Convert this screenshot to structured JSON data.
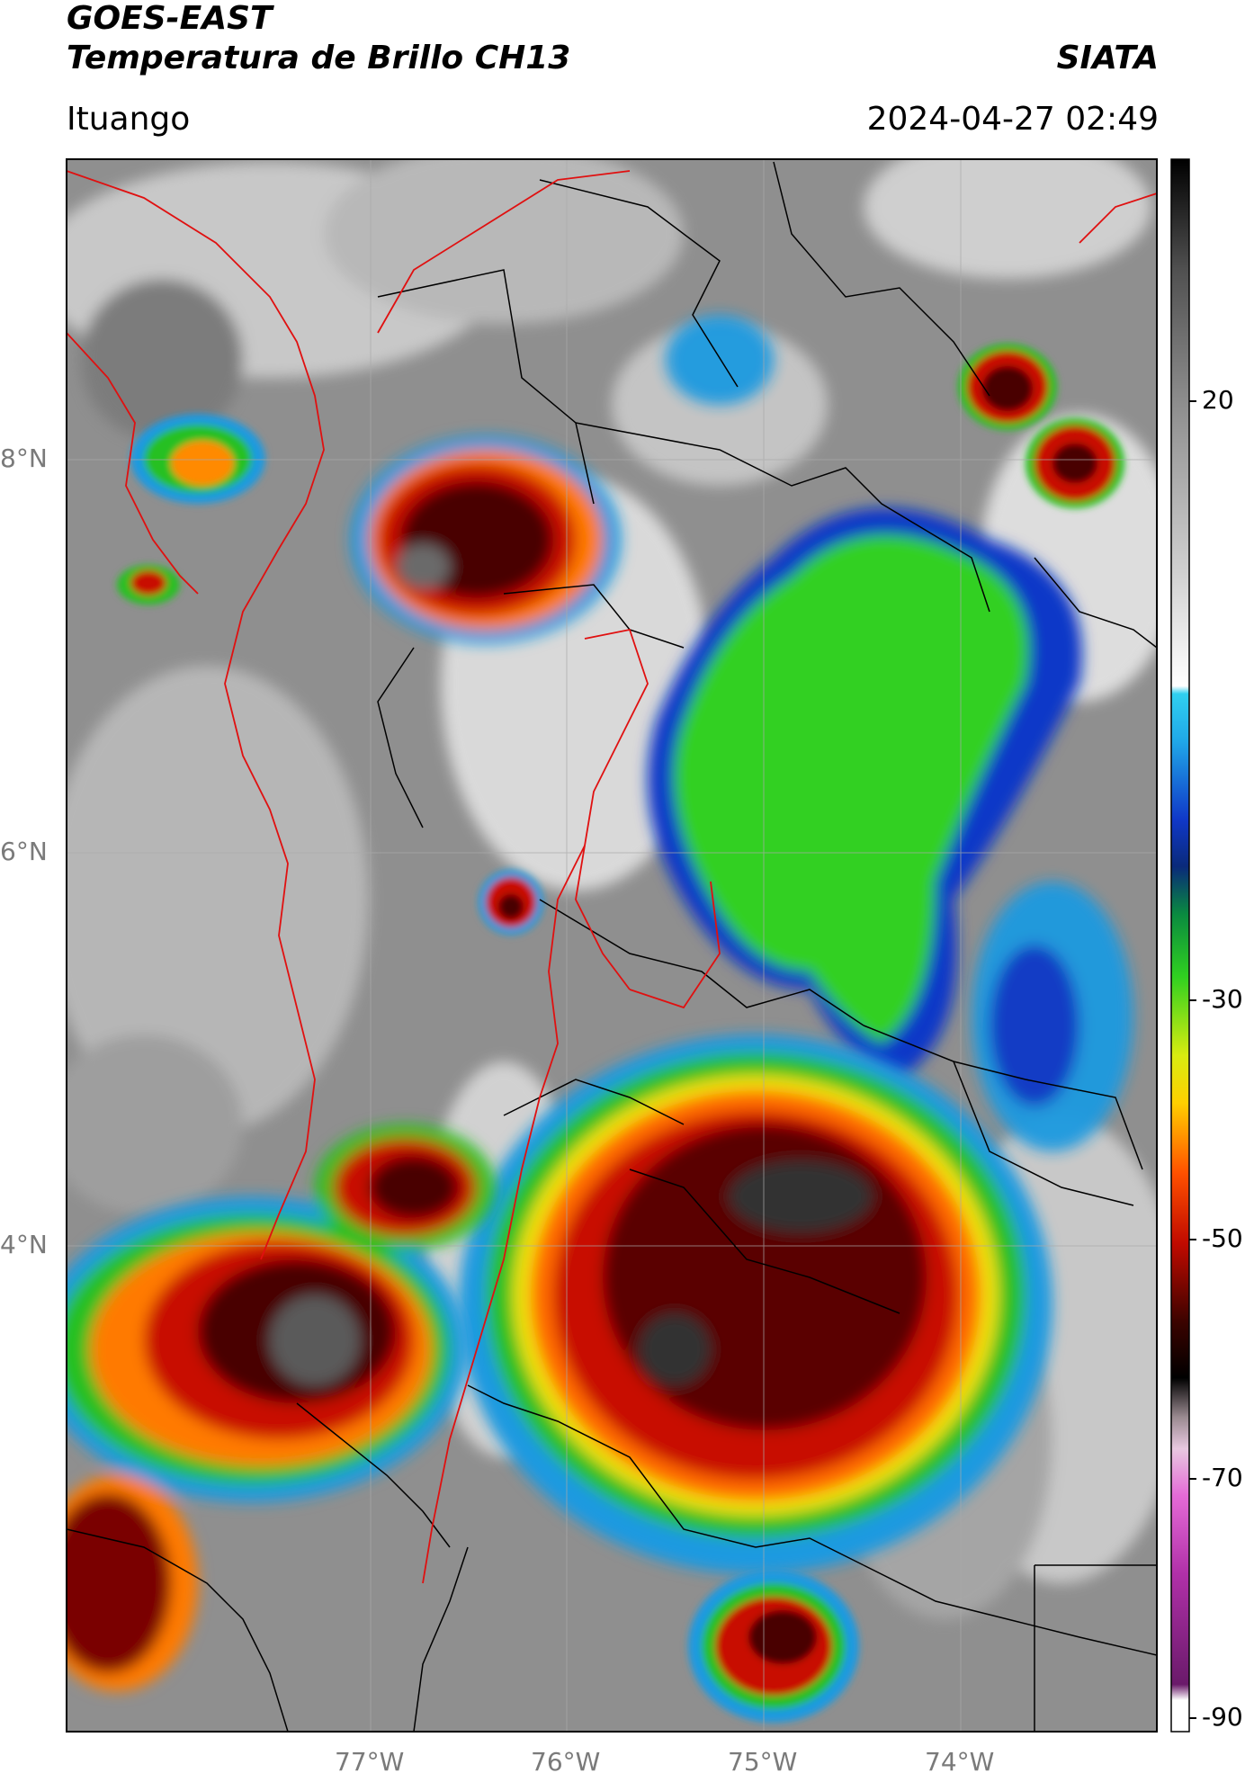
{
  "header": {
    "satellite": "GOES-EAST",
    "product": "Temperatura de Brillo CH13",
    "agency": "SIATA",
    "location": "Ituango",
    "datetime": "2024-04-27 02:49"
  },
  "axes": {
    "lat_labels": [
      "8°N",
      "6°N",
      "4°N"
    ],
    "lon_labels": [
      "77°W",
      "76°W",
      "75°W",
      "74°W"
    ]
  },
  "colorbar": {
    "tick_labels": [
      "20",
      "-30",
      "-50",
      "-70",
      "-90"
    ],
    "colors": {
      "warm_gray": "#7d7d7d",
      "light": "#e8e8e8",
      "cyan": "#18bde6",
      "dark_blue": "#0a2a9a",
      "green": "#2ee01a",
      "yellow": "#f5e80a",
      "orange": "#ff8a00",
      "red": "#d8140a",
      "dark_red": "#5a0500",
      "black": "#111111",
      "magenta": "#e040c8",
      "purple": "#8a1a8a"
    }
  }
}
